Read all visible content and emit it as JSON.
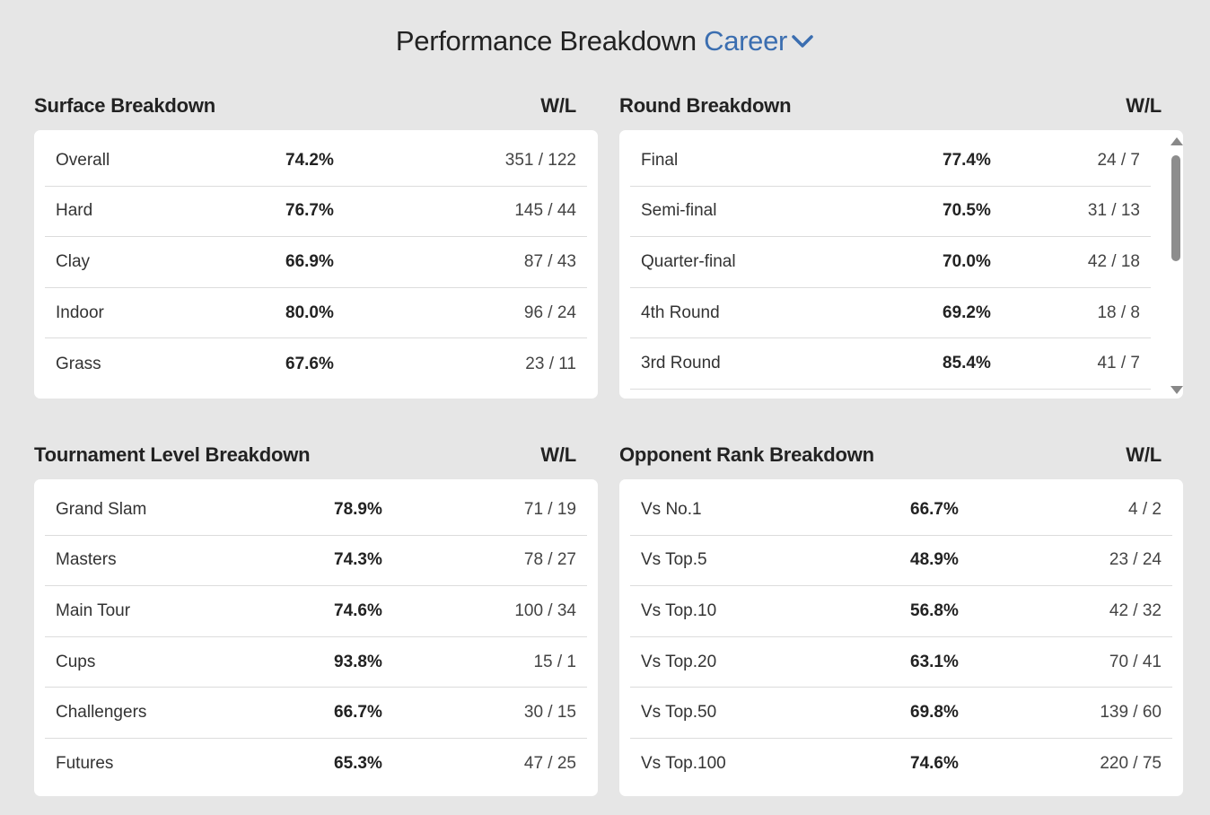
{
  "title": {
    "main": "Performance Breakdown",
    "period": "Career"
  },
  "sections": {
    "surface": {
      "heading": "Surface Breakdown",
      "col": "W/L",
      "rows": [
        {
          "label": "Overall",
          "pct": "74.2%",
          "wl": "351 / 122"
        },
        {
          "label": "Hard",
          "pct": "76.7%",
          "wl": "145 / 44"
        },
        {
          "label": "Clay",
          "pct": "66.9%",
          "wl": "87 / 43"
        },
        {
          "label": "Indoor",
          "pct": "80.0%",
          "wl": "96 / 24"
        },
        {
          "label": "Grass",
          "pct": "67.6%",
          "wl": "23 / 11"
        }
      ]
    },
    "round": {
      "heading": "Round Breakdown",
      "col": "W/L",
      "rows": [
        {
          "label": "Final",
          "pct": "77.4%",
          "wl": "24 / 7"
        },
        {
          "label": "Semi-final",
          "pct": "70.5%",
          "wl": "31 / 13"
        },
        {
          "label": "Quarter-final",
          "pct": "70.0%",
          "wl": "42 / 18"
        },
        {
          "label": "4th Round",
          "pct": "69.2%",
          "wl": "18 / 8"
        },
        {
          "label": "3rd Round",
          "pct": "85.4%",
          "wl": "41 / 7"
        }
      ]
    },
    "tournament": {
      "heading": "Tournament Level Breakdown",
      "col": "W/L",
      "rows": [
        {
          "label": "Grand Slam",
          "pct": "78.9%",
          "wl": "71 / 19"
        },
        {
          "label": "Masters",
          "pct": "74.3%",
          "wl": "78 / 27"
        },
        {
          "label": "Main Tour",
          "pct": "74.6%",
          "wl": "100 / 34"
        },
        {
          "label": "Cups",
          "pct": "93.8%",
          "wl": "15 / 1"
        },
        {
          "label": "Challengers",
          "pct": "66.7%",
          "wl": "30 / 15"
        },
        {
          "label": "Futures",
          "pct": "65.3%",
          "wl": "47 / 25"
        }
      ]
    },
    "opponent": {
      "heading": "Opponent Rank Breakdown",
      "col": "W/L",
      "rows": [
        {
          "label": "Vs No.1",
          "pct": "66.7%",
          "wl": "4 / 2"
        },
        {
          "label": "Vs Top.5",
          "pct": "48.9%",
          "wl": "23 / 24"
        },
        {
          "label": "Vs Top.10",
          "pct": "56.8%",
          "wl": "42 / 32"
        },
        {
          "label": "Vs Top.20",
          "pct": "63.1%",
          "wl": "70 / 41"
        },
        {
          "label": "Vs Top.50",
          "pct": "69.8%",
          "wl": "139 / 60"
        },
        {
          "label": "Vs Top.100",
          "pct": "74.6%",
          "wl": "220 / 75"
        }
      ]
    }
  },
  "colors": {
    "accent": "#3b6eb0",
    "background": "#e6e6e6",
    "card": "#ffffff"
  }
}
